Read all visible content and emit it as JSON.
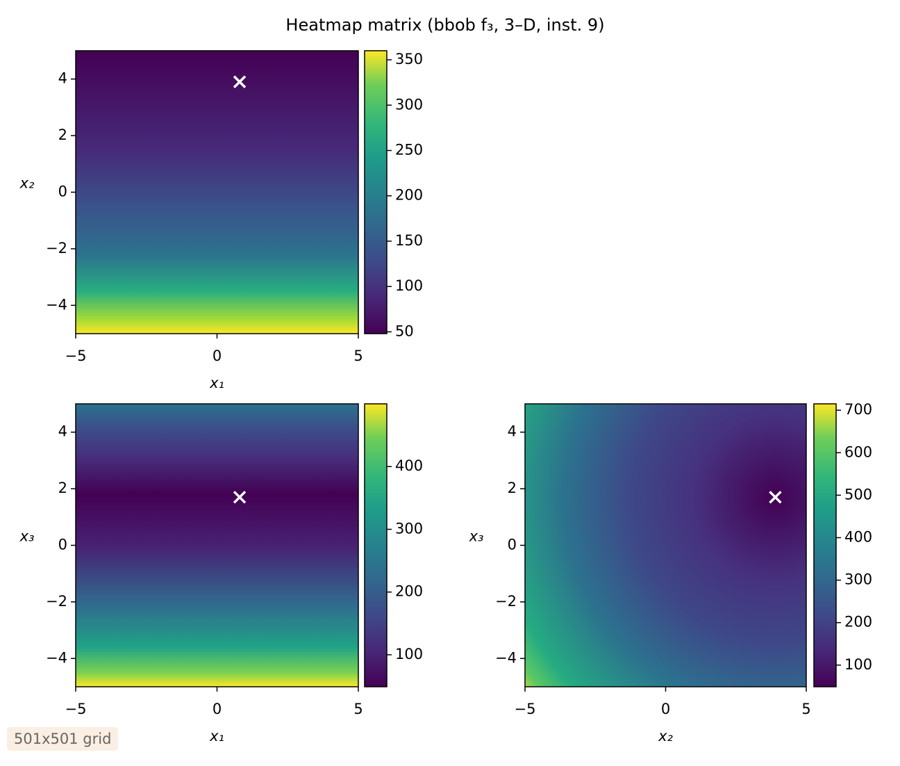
{
  "title": "Heatmap matrix (bbob f₃, 3–D, inst. 9)",
  "footer": "501x501 grid",
  "chart_data": [
    {
      "type": "heatmap",
      "xlabel": "x₁",
      "ylabel": "x₂",
      "xlim": [
        -5,
        5
      ],
      "ylim": [
        -5,
        5
      ],
      "xticks": [
        {
          "value": -5,
          "label": "−5"
        },
        0,
        5
      ],
      "yticks": [
        {
          "value": -4,
          "label": "−4"
        },
        {
          "value": -2,
          "label": "−2"
        },
        0,
        2,
        4
      ],
      "clim": [
        48,
        360
      ],
      "cticks": [
        50,
        100,
        150,
        200,
        250,
        300,
        350
      ],
      "optimum": {
        "x": 0.8,
        "y": 3.9
      }
    },
    {
      "type": "heatmap",
      "xlabel": "x₁",
      "ylabel": "x₃",
      "xlim": [
        -5,
        5
      ],
      "ylim": [
        -5,
        5
      ],
      "xticks": [
        {
          "value": -5,
          "label": "−5"
        },
        0,
        5
      ],
      "yticks": [
        {
          "value": -4,
          "label": "−4"
        },
        {
          "value": -2,
          "label": "−2"
        },
        0,
        2,
        4
      ],
      "clim": [
        49,
        500
      ],
      "cticks": [
        100,
        200,
        300,
        400
      ],
      "optimum": {
        "x": 0.8,
        "y": 1.7
      }
    },
    {
      "type": "heatmap",
      "xlabel": "x₂",
      "ylabel": "x₃",
      "xlim": [
        -5,
        5
      ],
      "ylim": [
        -5,
        5
      ],
      "xticks": [
        {
          "value": -5,
          "label": "−5"
        },
        0,
        5
      ],
      "yticks": [
        {
          "value": -4,
          "label": "−4"
        },
        {
          "value": -2,
          "label": "−2"
        },
        0,
        2,
        4
      ],
      "clim": [
        49,
        715
      ],
      "cticks": [
        100,
        200,
        300,
        400,
        500,
        600,
        700
      ],
      "optimum": {
        "x": 3.9,
        "y": 1.7
      }
    }
  ]
}
